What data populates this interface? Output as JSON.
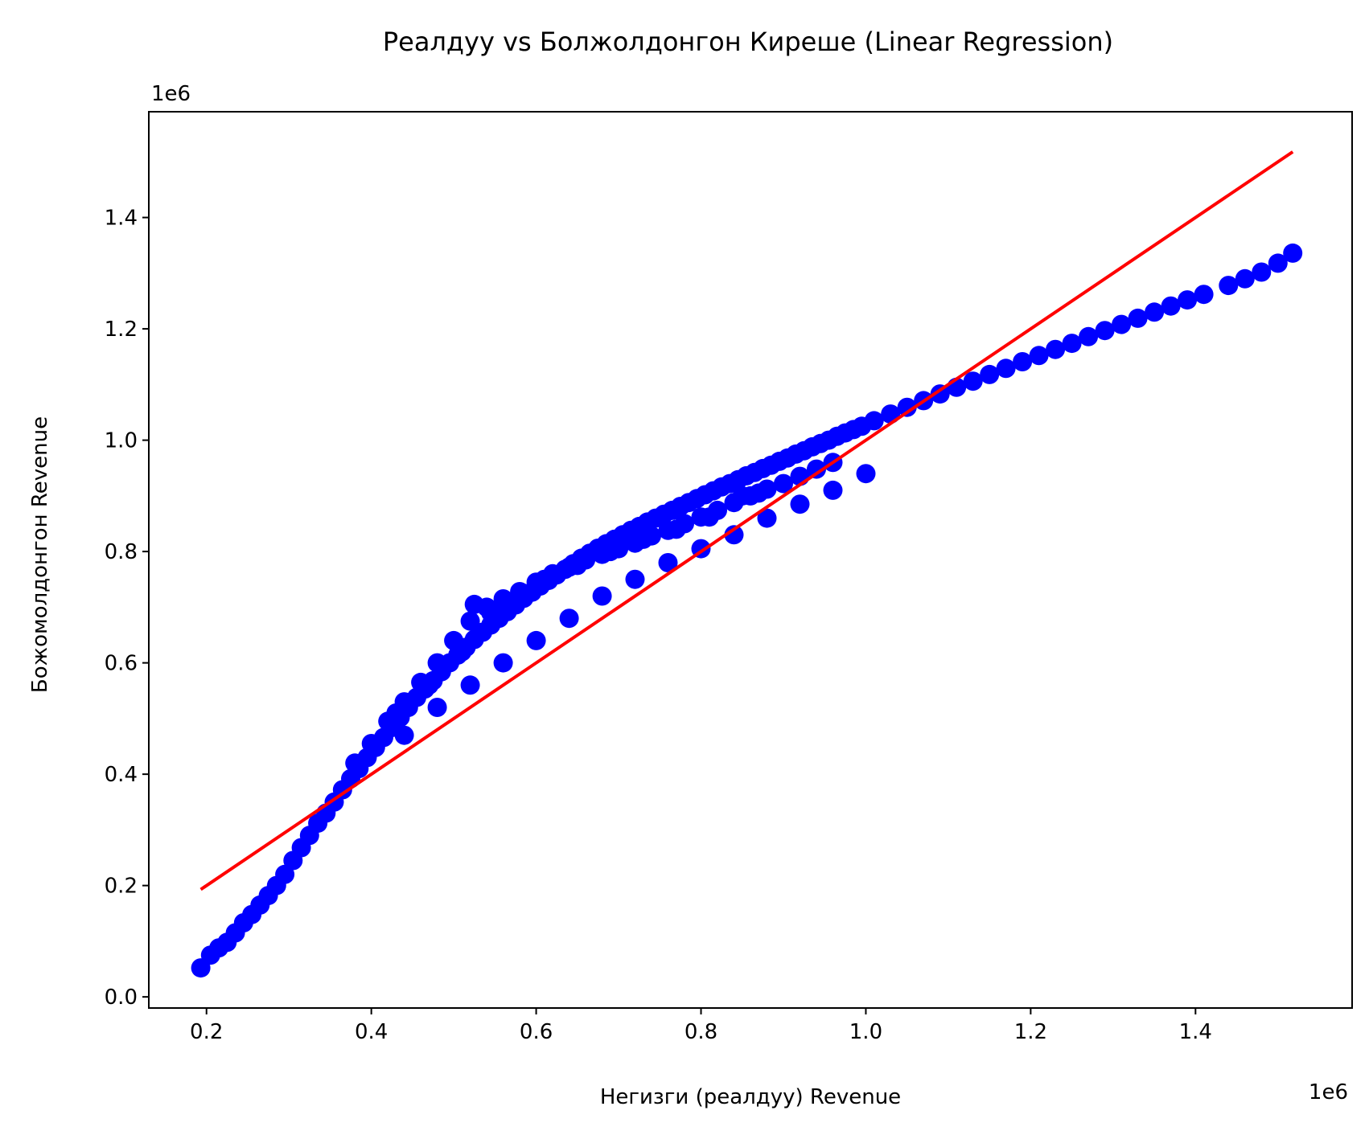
{
  "chart_data": {
    "type": "scatter",
    "title": "Реалдуу vs Болжолдонгон Киреше (Linear Regression)",
    "xlabel": "Негизги (реалдуу) Revenue",
    "ylabel": "Божомолдонгон Revenue",
    "x_offset_label": "1e6",
    "y_offset_label": "1e6",
    "xlim": [
      130000,
      1590000
    ],
    "ylim": [
      -20000,
      1590000
    ],
    "x_ticks": [
      200000,
      400000,
      600000,
      800000,
      1000000,
      1200000,
      1400000
    ],
    "x_tick_labels": [
      "0.2",
      "0.4",
      "0.6",
      "0.8",
      "1.0",
      "1.2",
      "1.4"
    ],
    "y_ticks": [
      0,
      200000,
      400000,
      600000,
      800000,
      1000000,
      1200000,
      1400000
    ],
    "y_tick_labels": [
      "0.0",
      "0.2",
      "0.4",
      "0.6",
      "0.8",
      "1.0",
      "1.2",
      "1.4"
    ],
    "grid": false,
    "series": [
      {
        "kind": "scatter",
        "color": "#0000ff",
        "points": [
          [
            193000,
            52000
          ],
          [
            205000,
            75000
          ],
          [
            215000,
            88000
          ],
          [
            225000,
            98000
          ],
          [
            235000,
            115000
          ],
          [
            245000,
            133000
          ],
          [
            255000,
            148000
          ],
          [
            265000,
            165000
          ],
          [
            275000,
            182000
          ],
          [
            285000,
            200000
          ],
          [
            295000,
            220000
          ],
          [
            305000,
            245000
          ],
          [
            315000,
            268000
          ],
          [
            325000,
            290000
          ],
          [
            335000,
            312000
          ],
          [
            345000,
            330000
          ],
          [
            355000,
            350000
          ],
          [
            365000,
            372000
          ],
          [
            375000,
            392000
          ],
          [
            385000,
            410000
          ],
          [
            395000,
            430000
          ],
          [
            405000,
            448000
          ],
          [
            415000,
            466000
          ],
          [
            425000,
            484000
          ],
          [
            435000,
            502000
          ],
          [
            445000,
            520000
          ],
          [
            455000,
            538000
          ],
          [
            465000,
            553000
          ],
          [
            475000,
            568000
          ],
          [
            485000,
            584000
          ],
          [
            495000,
            600000
          ],
          [
            505000,
            614000
          ],
          [
            515000,
            628000
          ],
          [
            525000,
            642000
          ],
          [
            535000,
            655000
          ],
          [
            545000,
            668000
          ],
          [
            555000,
            680000
          ],
          [
            565000,
            692000
          ],
          [
            575000,
            704000
          ],
          [
            585000,
            716000
          ],
          [
            595000,
            727000
          ],
          [
            605000,
            738000
          ],
          [
            615000,
            748000
          ],
          [
            625000,
            758000
          ],
          [
            635000,
            768000
          ],
          [
            645000,
            778000
          ],
          [
            655000,
            788000
          ],
          [
            665000,
            797000
          ],
          [
            675000,
            806000
          ],
          [
            685000,
            814000
          ],
          [
            695000,
            822000
          ],
          [
            705000,
            830000
          ],
          [
            715000,
            838000
          ],
          [
            725000,
            845000
          ],
          [
            735000,
            853000
          ],
          [
            745000,
            860000
          ],
          [
            755000,
            867000
          ],
          [
            765000,
            874000
          ],
          [
            775000,
            881000
          ],
          [
            785000,
            888000
          ],
          [
            795000,
            895000
          ],
          [
            805000,
            902000
          ],
          [
            815000,
            909000
          ],
          [
            825000,
            916000
          ],
          [
            835000,
            922000
          ],
          [
            845000,
            929000
          ],
          [
            855000,
            936000
          ],
          [
            865000,
            942000
          ],
          [
            875000,
            949000
          ],
          [
            885000,
            955000
          ],
          [
            895000,
            962000
          ],
          [
            905000,
            968000
          ],
          [
            915000,
            975000
          ],
          [
            925000,
            981000
          ],
          [
            935000,
            988000
          ],
          [
            945000,
            994000
          ],
          [
            955000,
            1000000
          ],
          [
            965000,
            1007000
          ],
          [
            975000,
            1013000
          ],
          [
            985000,
            1019000
          ],
          [
            995000,
            1025000
          ],
          [
            1010000,
            1035000
          ],
          [
            1030000,
            1047000
          ],
          [
            1050000,
            1059000
          ],
          [
            1070000,
            1071000
          ],
          [
            1090000,
            1083000
          ],
          [
            1110000,
            1095000
          ],
          [
            1130000,
            1106000
          ],
          [
            1150000,
            1118000
          ],
          [
            1170000,
            1129000
          ],
          [
            1190000,
            1141000
          ],
          [
            1210000,
            1152000
          ],
          [
            1230000,
            1163000
          ],
          [
            1250000,
            1174000
          ],
          [
            1270000,
            1186000
          ],
          [
            1290000,
            1197000
          ],
          [
            1310000,
            1208000
          ],
          [
            1330000,
            1219000
          ],
          [
            1350000,
            1230000
          ],
          [
            1370000,
            1241000
          ],
          [
            1390000,
            1252000
          ],
          [
            1410000,
            1262000
          ],
          [
            1440000,
            1278000
          ],
          [
            1460000,
            1290000
          ],
          [
            1480000,
            1302000
          ],
          [
            1500000,
            1318000
          ],
          [
            1518000,
            1336000
          ],
          [
            380000,
            420000
          ],
          [
            400000,
            455000
          ],
          [
            420000,
            495000
          ],
          [
            440000,
            530000
          ],
          [
            460000,
            565000
          ],
          [
            480000,
            600000
          ],
          [
            500000,
            640000
          ],
          [
            520000,
            675000
          ],
          [
            540000,
            700000
          ],
          [
            560000,
            715000
          ],
          [
            580000,
            728000
          ],
          [
            600000,
            745000
          ],
          [
            620000,
            760000
          ],
          [
            640000,
            772000
          ],
          [
            660000,
            785000
          ],
          [
            680000,
            795000
          ],
          [
            700000,
            805000
          ],
          [
            720000,
            815000
          ],
          [
            740000,
            828000
          ],
          [
            760000,
            838000
          ],
          [
            780000,
            850000
          ],
          [
            800000,
            862000
          ],
          [
            820000,
            874000
          ],
          [
            840000,
            888000
          ],
          [
            860000,
            900000
          ],
          [
            880000,
            912000
          ],
          [
            900000,
            922000
          ],
          [
            920000,
            935000
          ],
          [
            940000,
            948000
          ],
          [
            960000,
            960000
          ],
          [
            430000,
            510000
          ],
          [
            470000,
            560000
          ],
          [
            510000,
            620000
          ],
          [
            525000,
            705000
          ],
          [
            545000,
            690000
          ],
          [
            565000,
            705000
          ],
          [
            585000,
            725000
          ],
          [
            610000,
            750000
          ],
          [
            650000,
            775000
          ],
          [
            690000,
            800000
          ],
          [
            730000,
            822000
          ],
          [
            770000,
            840000
          ],
          [
            810000,
            862000
          ],
          [
            850000,
            900000
          ],
          [
            870000,
            905000
          ],
          [
            440000,
            470000
          ],
          [
            480000,
            520000
          ],
          [
            520000,
            560000
          ],
          [
            560000,
            600000
          ],
          [
            600000,
            640000
          ],
          [
            640000,
            680000
          ],
          [
            680000,
            720000
          ],
          [
            720000,
            750000
          ],
          [
            760000,
            780000
          ],
          [
            800000,
            805000
          ],
          [
            840000,
            830000
          ],
          [
            880000,
            860000
          ],
          [
            920000,
            885000
          ],
          [
            960000,
            910000
          ],
          [
            1000000,
            940000
          ]
        ]
      },
      {
        "kind": "line",
        "color": "#ff0000",
        "points": [
          [
            193000,
            193000
          ],
          [
            1518000,
            1518000
          ]
        ]
      }
    ]
  }
}
